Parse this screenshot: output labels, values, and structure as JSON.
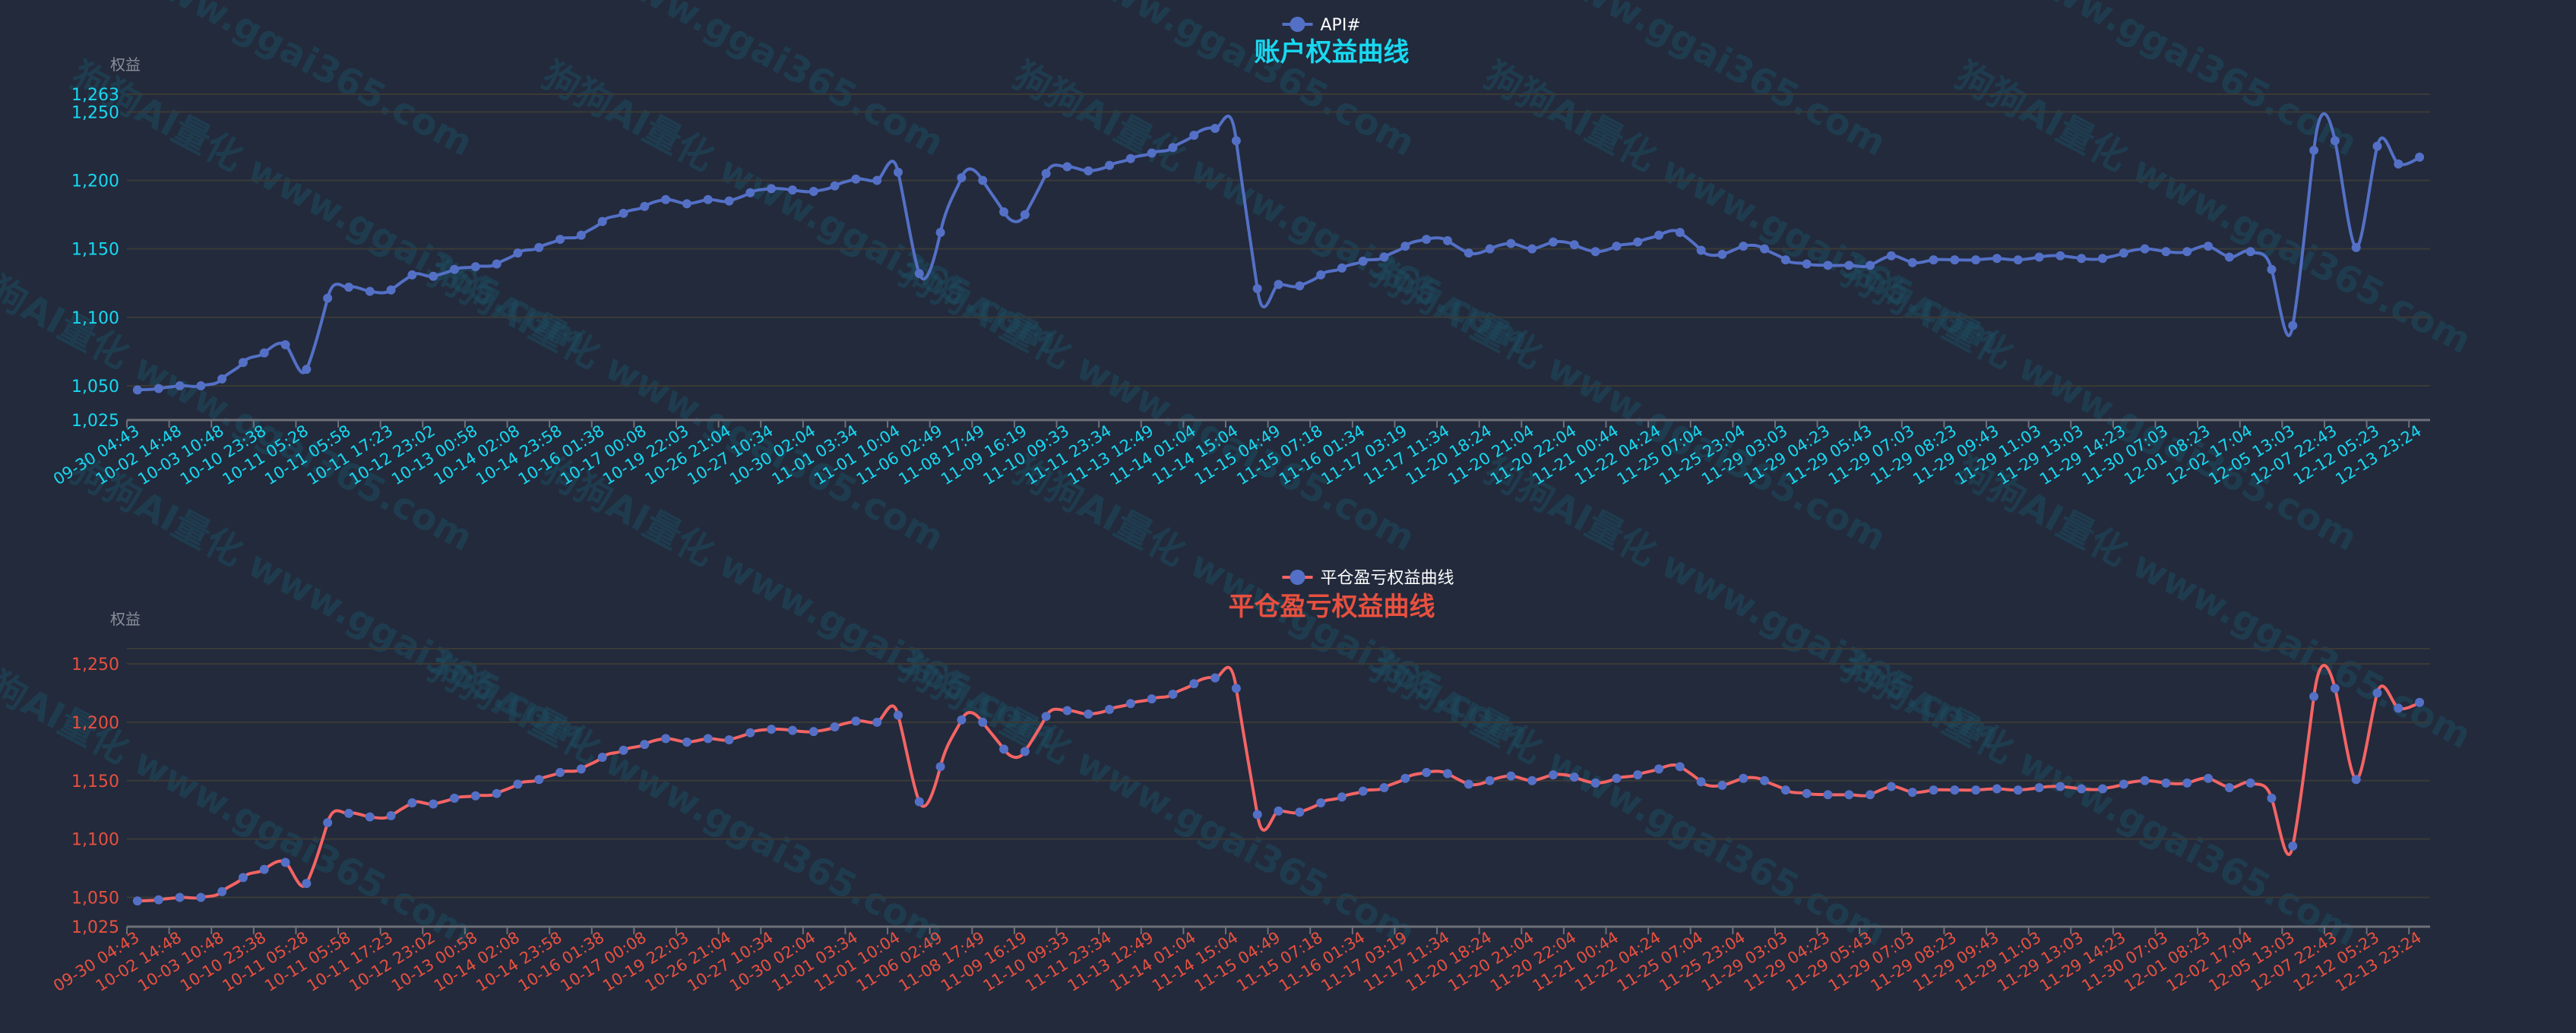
{
  "watermark": "狗狗AI量化 www.ggai365.com",
  "colors": {
    "background": "#222a3c",
    "grid": "#3b3a36",
    "axis_line": "#6e7079",
    "axis_name": "#8a8f99",
    "top_labels": "#18d8f0",
    "bottom_labels": "#e8503f",
    "top_line": "#5470c6",
    "bottom_line": "#f46464",
    "point": "#5470c6",
    "legend_text": "#ffffff"
  },
  "chart_data": [
    {
      "type": "line",
      "smooth": true,
      "title": "账户权益曲线",
      "legend": [
        "API#"
      ],
      "legend_position": "top-center",
      "ylabel": "权益",
      "ylim": [
        1025,
        1263
      ],
      "y_ticks": [
        "1,025",
        "1,050",
        "1,100",
        "1,150",
        "1,200",
        "1,250",
        "1,263"
      ],
      "grid": true,
      "x_tick_labels": [
        "09-30 04:43",
        "10-02 14:48",
        "10-03 10:48",
        "10-10 23:38",
        "10-11 05:28",
        "10-11 05:58",
        "10-11 17:23",
        "10-12 23:02",
        "10-13 00:58",
        "10-14 02:08",
        "10-14 23:58",
        "10-16 01:38",
        "10-17 00:08",
        "10-19 22:03",
        "10-26 21:04",
        "10-27 10:34",
        "10-30 02:04",
        "11-01 03:34",
        "11-01 10:04",
        "11-06 02:49",
        "11-08 17:49",
        "11-09 16:19",
        "11-10 09:33",
        "11-11 23:34",
        "11-13 12:49",
        "11-14 01:04",
        "11-14 15:04",
        "11-15 04:49",
        "11-15 07:18",
        "11-16 01:34",
        "11-17 03:19",
        "11-17 11:34",
        "11-20 18:24",
        "11-20 21:04",
        "11-20 22:04",
        "11-21 00:44",
        "11-22 04:24",
        "11-25 07:04",
        "11-25 23:04",
        "11-29 03:03",
        "11-29 04:23",
        "11-29 05:43",
        "11-29 07:03",
        "11-29 08:23",
        "11-29 09:43",
        "11-29 11:03",
        "11-29 13:03",
        "11-29 14:23",
        "11-30 07:03",
        "12-01 08:23",
        "12-02 17:04",
        "12-05 13:03",
        "12-07 22:43",
        "12-12 05:23",
        "12-13 23:24"
      ],
      "series": [
        {
          "name": "API#",
          "values": [
            1047,
            1048,
            1050,
            1050,
            1055,
            1067,
            1074,
            1080,
            1062,
            1114,
            1122,
            1119,
            1120,
            1131,
            1130,
            1135,
            1137,
            1139,
            1147,
            1151,
            1157,
            1160,
            1170,
            1176,
            1181,
            1186,
            1183,
            1186,
            1185,
            1191,
            1194,
            1193,
            1192,
            1196,
            1201,
            1200,
            1206,
            1132,
            1162,
            1202,
            1200,
            1177,
            1175,
            1205,
            1210,
            1207,
            1211,
            1216,
            1220,
            1224,
            1233,
            1238,
            1229,
            1121,
            1124,
            1123,
            1131,
            1136,
            1141,
            1144,
            1152,
            1157,
            1156,
            1147,
            1150,
            1154,
            1150,
            1155,
            1153,
            1148,
            1152,
            1155,
            1160,
            1162,
            1149,
            1146,
            1152,
            1150,
            1142,
            1139,
            1138,
            1138,
            1138,
            1145,
            1140,
            1142,
            1142,
            1142,
            1143,
            1142,
            1144,
            1145,
            1143,
            1143,
            1147,
            1150,
            1148,
            1148,
            1152,
            1144,
            1148,
            1135,
            1094,
            1222,
            1229,
            1151,
            1225,
            1212,
            1217
          ]
        }
      ]
    },
    {
      "type": "line",
      "smooth": true,
      "title": "平仓盈亏权益曲线",
      "legend": [
        "平仓盈亏权益曲线"
      ],
      "legend_position": "top-center",
      "ylabel": "权益",
      "ylim": [
        1025,
        1263
      ],
      "y_ticks": [
        "1,025",
        "1,050",
        "1,100",
        "1,150",
        "1,200",
        "1,250"
      ],
      "grid": true,
      "x_tick_labels": [
        "09-30 04:43",
        "10-02 14:48",
        "10-03 10:48",
        "10-10 23:38",
        "10-11 05:28",
        "10-11 05:58",
        "10-11 17:23",
        "10-12 23:02",
        "10-13 00:58",
        "10-14 02:08",
        "10-14 23:58",
        "10-16 01:38",
        "10-17 00:08",
        "10-19 22:03",
        "10-26 21:04",
        "10-27 10:34",
        "10-30 02:04",
        "11-01 03:34",
        "11-01 10:04",
        "11-06 02:49",
        "11-08 17:49",
        "11-09 16:19",
        "11-10 09:33",
        "11-11 23:34",
        "11-13 12:49",
        "11-14 01:04",
        "11-14 15:04",
        "11-15 04:49",
        "11-15 07:18",
        "11-16 01:34",
        "11-17 03:19",
        "11-17 11:34",
        "11-20 18:24",
        "11-20 21:04",
        "11-20 22:04",
        "11-21 00:44",
        "11-22 04:24",
        "11-25 07:04",
        "11-25 23:04",
        "11-29 03:03",
        "11-29 04:23",
        "11-29 05:43",
        "11-29 07:03",
        "11-29 08:23",
        "11-29 09:43",
        "11-29 11:03",
        "11-29 13:03",
        "11-29 14:23",
        "11-30 07:03",
        "12-01 08:23",
        "12-02 17:04",
        "12-05 13:03",
        "12-07 22:43",
        "12-12 05:23",
        "12-13 23:24"
      ],
      "series": [
        {
          "name": "平仓盈亏权益曲线",
          "values": [
            1047,
            1048,
            1050,
            1050,
            1055,
            1067,
            1074,
            1080,
            1062,
            1114,
            1122,
            1119,
            1120,
            1131,
            1130,
            1135,
            1137,
            1139,
            1147,
            1151,
            1157,
            1160,
            1170,
            1176,
            1181,
            1186,
            1183,
            1186,
            1185,
            1191,
            1194,
            1193,
            1192,
            1196,
            1201,
            1200,
            1206,
            1132,
            1162,
            1202,
            1200,
            1177,
            1175,
            1205,
            1210,
            1207,
            1211,
            1216,
            1220,
            1224,
            1233,
            1238,
            1229,
            1121,
            1124,
            1123,
            1131,
            1136,
            1141,
            1144,
            1152,
            1157,
            1156,
            1147,
            1150,
            1154,
            1150,
            1155,
            1153,
            1148,
            1152,
            1155,
            1160,
            1162,
            1149,
            1146,
            1152,
            1150,
            1142,
            1139,
            1138,
            1138,
            1138,
            1145,
            1140,
            1142,
            1142,
            1142,
            1143,
            1142,
            1144,
            1145,
            1143,
            1143,
            1147,
            1150,
            1148,
            1148,
            1152,
            1144,
            1148,
            1135,
            1094,
            1222,
            1229,
            1151,
            1225,
            1212,
            1217
          ]
        }
      ]
    }
  ]
}
